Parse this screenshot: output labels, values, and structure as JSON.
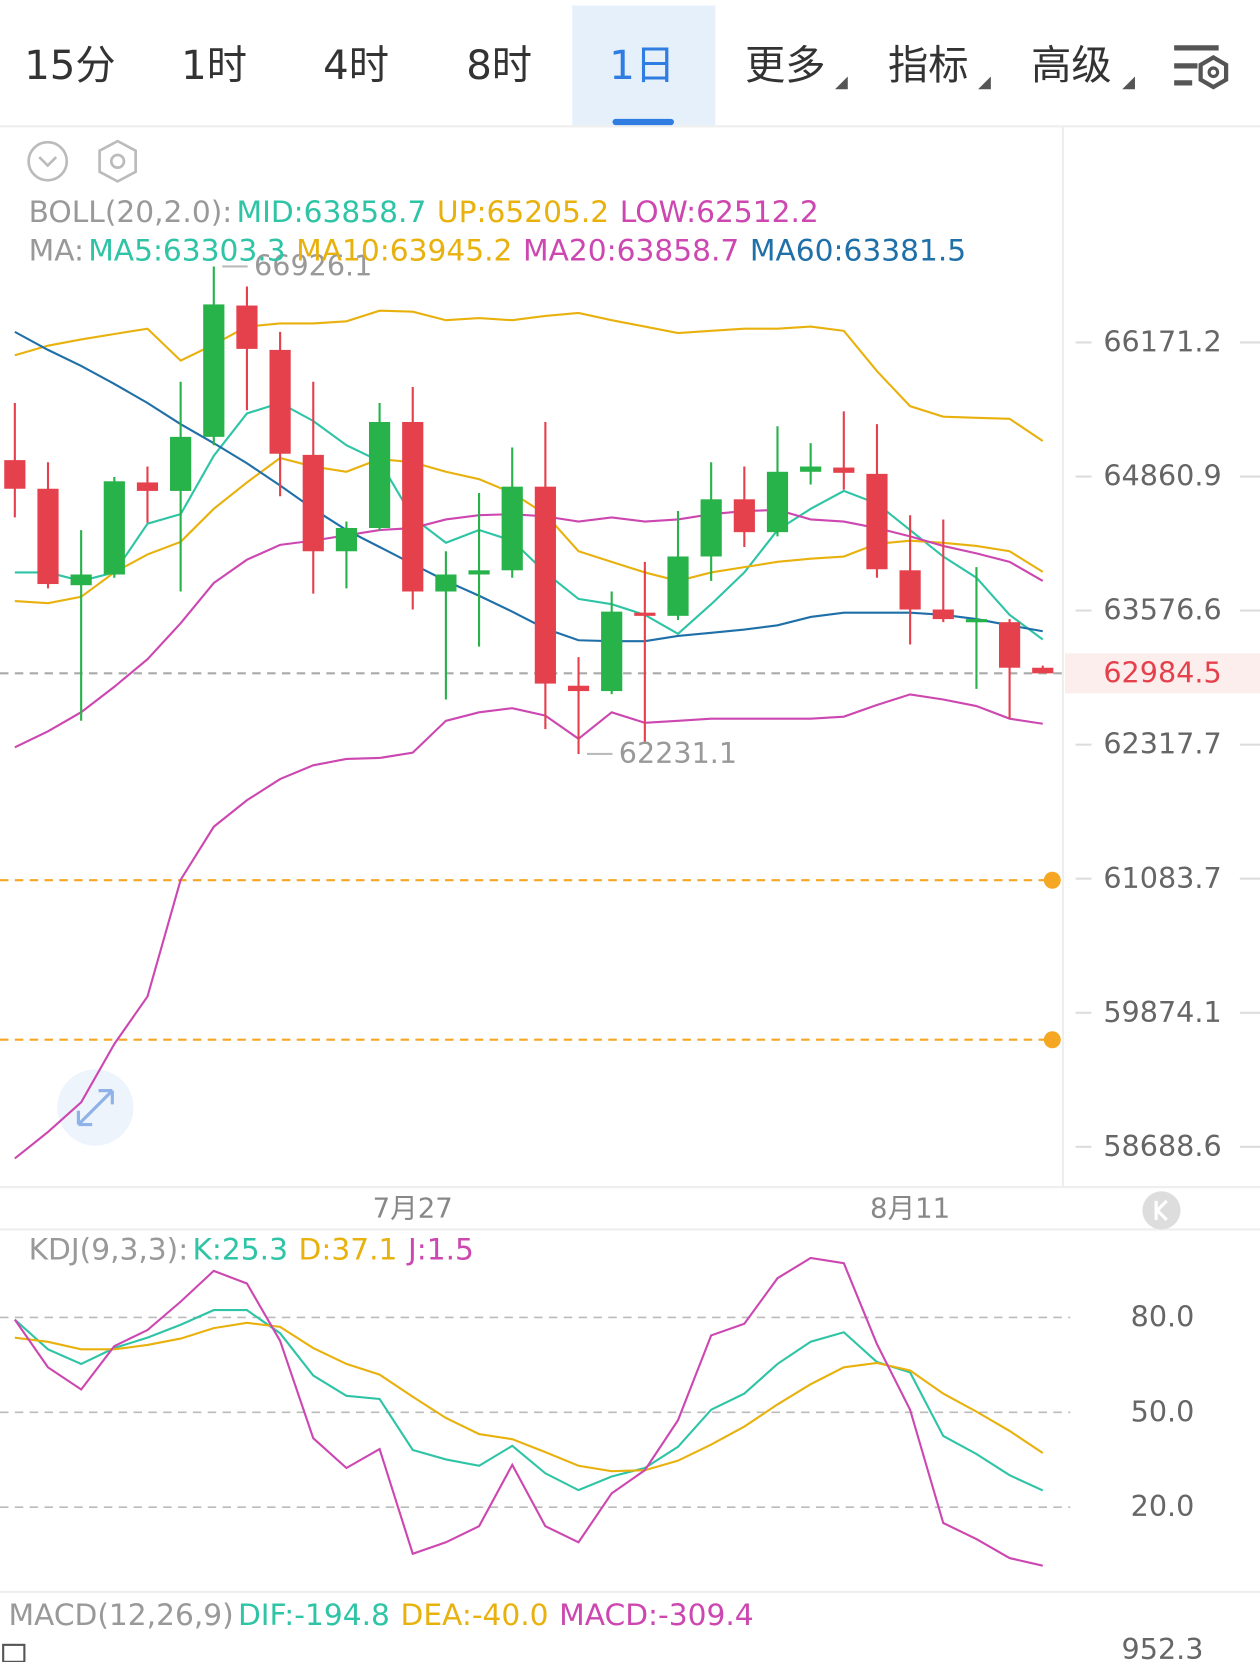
{
  "tabs": [
    "15分",
    "1时",
    "4时",
    "8时",
    "1日",
    "更多",
    "指标",
    "高级"
  ],
  "active_tab": 4,
  "chart_data": [
    {
      "type": "candlestick",
      "log_scale": true,
      "ylim": [
        58356,
        68351
      ],
      "yticks": [
        66171.2,
        64860.9,
        63576.6,
        62317.7,
        61083.7,
        59874.1,
        58688.6
      ],
      "categories": [
        null,
        null,
        null,
        null,
        null,
        null,
        null,
        null,
        null,
        null,
        null,
        null,
        "7月27",
        null,
        null,
        null,
        null,
        null,
        null,
        null,
        null,
        null,
        null,
        null,
        null,
        null,
        null,
        "8月11",
        null,
        null,
        null,
        null
      ],
      "up_color": "#27b24a",
      "down_color": "#e5414d",
      "ohlc": [
        [
          65020,
          65577,
          64467,
          64743
        ],
        [
          64743,
          64999,
          63788,
          63829
        ],
        [
          63818,
          64345,
          62541,
          63920
        ],
        [
          63920,
          64856,
          63889,
          64815
        ],
        [
          64804,
          64958,
          64416,
          64722
        ],
        [
          64722,
          65785,
          63758,
          65246
        ],
        [
          65246,
          66926.1,
          65164,
          66548
        ],
        [
          66537,
          66726,
          65505,
          66108
        ],
        [
          66098,
          66276,
          64671,
          65082
        ],
        [
          65071,
          65785,
          63738,
          64142
        ],
        [
          64142,
          64427,
          63788,
          64365
        ],
        [
          64365,
          65577,
          64345,
          65391
        ],
        [
          65391,
          65733,
          63587,
          63758
        ],
        [
          63758,
          64142,
          62739,
          63920
        ],
        [
          63920,
          64702,
          63236,
          63960
        ],
        [
          63960,
          65143,
          63889,
          64763
        ],
        [
          64763,
          65391,
          62462,
          62888
        ],
        [
          62868,
          63137,
          62231.1,
          62818
        ],
        [
          62818,
          63758,
          62789,
          63567
        ],
        [
          63557,
          64041,
          62325,
          63527
        ],
        [
          63527,
          64528,
          63487,
          64092
        ],
        [
          64092,
          64999,
          63859,
          64641
        ],
        [
          64641,
          64958,
          64183,
          64325
        ],
        [
          64325,
          65350,
          64284,
          64907
        ],
        [
          64907,
          65185,
          64784,
          64958
        ],
        [
          64948,
          65494,
          64733,
          64897
        ],
        [
          64887,
          65370,
          63889,
          63970
        ],
        [
          63960,
          64488,
          63256,
          63587
        ],
        [
          63587,
          64447,
          63467,
          63496
        ],
        [
          63477,
          63990,
          62838,
          63496
        ],
        [
          63467,
          63496,
          62561,
          63037
        ],
        [
          63037,
          63057,
          63007,
          62984.5
        ]
      ],
      "legend_groups": [
        {
          "title": "BOLL(20,2.0):",
          "items": [
            {
              "text": "MID:63858.7",
              "color": "#2ec4a5"
            },
            {
              "text": "UP:65205.2",
              "color": "#e8b10d"
            },
            {
              "text": "LOW:62512.2",
              "color": "#cc47b0"
            }
          ]
        },
        {
          "title": "MA:",
          "items": [
            {
              "text": "MA5:63303.3",
              "color": "#2ec4a5"
            },
            {
              "text": "MA10:63945.2",
              "color": "#e8b10d"
            },
            {
              "text": "MA20:63858.7",
              "color": "#cc47b0"
            },
            {
              "text": "MA60:63381.5",
              "color": "#1f6fa8"
            }
          ]
        }
      ],
      "series": [
        {
          "color": "#e8b10d",
          "values": [
            66045,
            66140,
            66202,
            66255,
            66307,
            65993,
            66150,
            66328,
            66360,
            66360,
            66381,
            66486,
            66475,
            66391,
            66412,
            66391,
            66433,
            66464,
            66391,
            66328,
            66265,
            66286,
            66307,
            66307,
            66328,
            66286,
            65889,
            65546,
            65443,
            65432,
            65422,
            65205.2
          ]
        },
        {
          "color": "#cc47b0",
          "values": [
            58587,
            58819,
            59080,
            59596,
            60021,
            61074,
            61559,
            61803,
            61999,
            62126,
            62185,
            62194,
            62243,
            62540,
            62619,
            62658,
            62589,
            62372,
            62619,
            62521,
            62540,
            62560,
            62560,
            62560,
            62560,
            62579,
            62688,
            62787,
            62739,
            62678,
            62560,
            62512.2
          ]
        },
        {
          "color": "#2ec4a5",
          "values": [
            63940,
            63940,
            63859,
            63940,
            64406,
            64498,
            65061,
            65474,
            65577,
            65401,
            65164,
            65010,
            64467,
            64223,
            64345,
            64244,
            63940,
            63687,
            63637,
            63537,
            63357,
            63637,
            63940,
            64345,
            64549,
            64722,
            64600,
            64345,
            64092,
            63889,
            63537,
            63303.3
          ]
        },
        {
          "color": "#e8b10d",
          "values": [
            63667,
            63647,
            63708,
            63940,
            64112,
            64233,
            64549,
            64804,
            65041,
            64958,
            64907,
            65030,
            64999,
            64907,
            64835,
            64702,
            64498,
            64142,
            64041,
            63940,
            63859,
            63940,
            63990,
            64041,
            64071,
            64092,
            64213,
            64244,
            64223,
            64193,
            64142,
            63945.2
          ]
        },
        {
          "color": "#cc47b0",
          "values": [
            62293,
            62442,
            62620,
            62858,
            63117,
            63457,
            63839,
            64061,
            64203,
            64244,
            64294,
            64345,
            64365,
            64447,
            64488,
            64498,
            64477,
            64427,
            64467,
            64427,
            64447,
            64498,
            64528,
            64539,
            64447,
            64427,
            64365,
            64284,
            64193,
            64122,
            64041,
            63858.7
          ]
        },
        {
          "color": "#1f6fa8",
          "values": [
            66276,
            66098,
            65941,
            65764,
            65577,
            65370,
            65185,
            64989,
            64774,
            64549,
            64345,
            64183,
            64020,
            63859,
            63718,
            63567,
            63406,
            63296,
            63287,
            63287,
            63337,
            63366,
            63397,
            63437,
            63517,
            63557,
            63557,
            63557,
            63537,
            63496,
            63437,
            63381.5
          ]
        }
      ],
      "extremes": [
        {
          "candle": 6,
          "value": 66926.1
        },
        {
          "candle": 17,
          "value": 62231.1
        }
      ],
      "last_price": 62984.5,
      "last_price_color": "#e5414d",
      "alert_lines": [
        61070,
        59634
      ],
      "alert_color": "#f5a623"
    },
    {
      "type": "line",
      "title": "KDJ(9,3,3):",
      "ylim": [
        -6.1,
        107.8
      ],
      "yticks": [
        {
          "value": 80,
          "label": "80.0"
        },
        {
          "value": 50,
          "label": "50.0"
        },
        {
          "value": 20,
          "label": "20.0"
        }
      ],
      "grid": true,
      "series": [
        {
          "legend": "K:25.3",
          "color": "#2ec4a5",
          "values": [
            79.3,
            69.9,
            65.3,
            70.3,
            73.6,
            77.7,
            82.3,
            82.3,
            75.0,
            61.6,
            55.2,
            54.2,
            38.1,
            35.1,
            33.1,
            39.4,
            30.7,
            25.4,
            29.7,
            32.4,
            39.1,
            50.8,
            55.9,
            65.3,
            72.3,
            75.3,
            65.9,
            62.6,
            42.5,
            36.8,
            30.1,
            25.3
          ]
        },
        {
          "legend": "D:37.1",
          "color": "#e8b10d",
          "values": [
            73.6,
            72.3,
            69.9,
            69.9,
            71.3,
            73.3,
            76.6,
            78.3,
            77.0,
            70.3,
            65.3,
            61.9,
            54.9,
            48.2,
            43.1,
            41.5,
            37.4,
            33.1,
            31.4,
            31.7,
            34.7,
            39.8,
            45.5,
            52.5,
            58.9,
            64.2,
            65.6,
            63.2,
            55.9,
            50.2,
            44.1,
            37.1
          ]
        },
        {
          "legend": "J:1.5",
          "color": "#cc47b0",
          "values": [
            79.3,
            64.2,
            57.2,
            70.9,
            76.0,
            85.0,
            94.7,
            90.7,
            72.6,
            41.8,
            32.4,
            38.4,
            5.3,
            8.9,
            14.0,
            33.4,
            14.0,
            8.9,
            24.4,
            31.7,
            47.5,
            74.3,
            78.0,
            92.4,
            98.8,
            97.1,
            71.6,
            50.8,
            15.0,
            9.9,
            3.9,
            1.5
          ]
        }
      ]
    },
    {
      "type": "macd",
      "title": "MACD(12,26,9)",
      "legend": [
        {
          "text": "DIF:-194.8",
          "color": "#2ec4a5"
        },
        {
          "text": "DEA:-40.0",
          "color": "#e8b10d"
        },
        {
          "text": "MACD:-309.4",
          "color": "#cc47b0"
        }
      ],
      "yticks": [
        952.3
      ]
    }
  ]
}
